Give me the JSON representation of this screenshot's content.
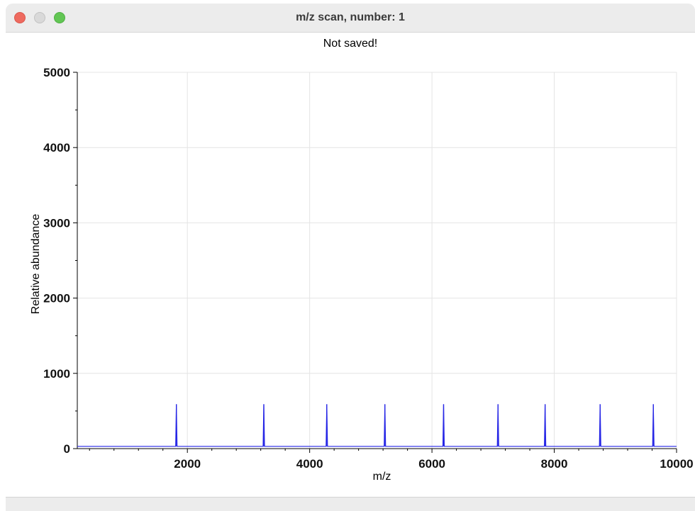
{
  "window": {
    "title": "m/z scan, number: 1",
    "status": "Not saved!"
  },
  "colors": {
    "series": "#2727e6",
    "grid": "#e4e4e4",
    "axis": "#000000"
  },
  "chart_data": {
    "type": "line",
    "title": "",
    "xlabel": "m/z",
    "ylabel": "Relative abundance",
    "xlim": [
      200,
      10000
    ],
    "ylim": [
      0,
      5000
    ],
    "xticks": [
      2000,
      4000,
      6000,
      8000,
      10000
    ],
    "yticks": [
      0,
      1000,
      2000,
      3000,
      4000,
      5000
    ],
    "grid": true,
    "legend": "none",
    "baseline": 30,
    "series": [
      {
        "peaks_x": [
          1820,
          3250,
          4280,
          5230,
          6190,
          7080,
          7850,
          8750,
          9620
        ],
        "peaks_y": [
          590,
          590,
          590,
          590,
          590,
          590,
          590,
          590,
          590
        ]
      }
    ]
  }
}
